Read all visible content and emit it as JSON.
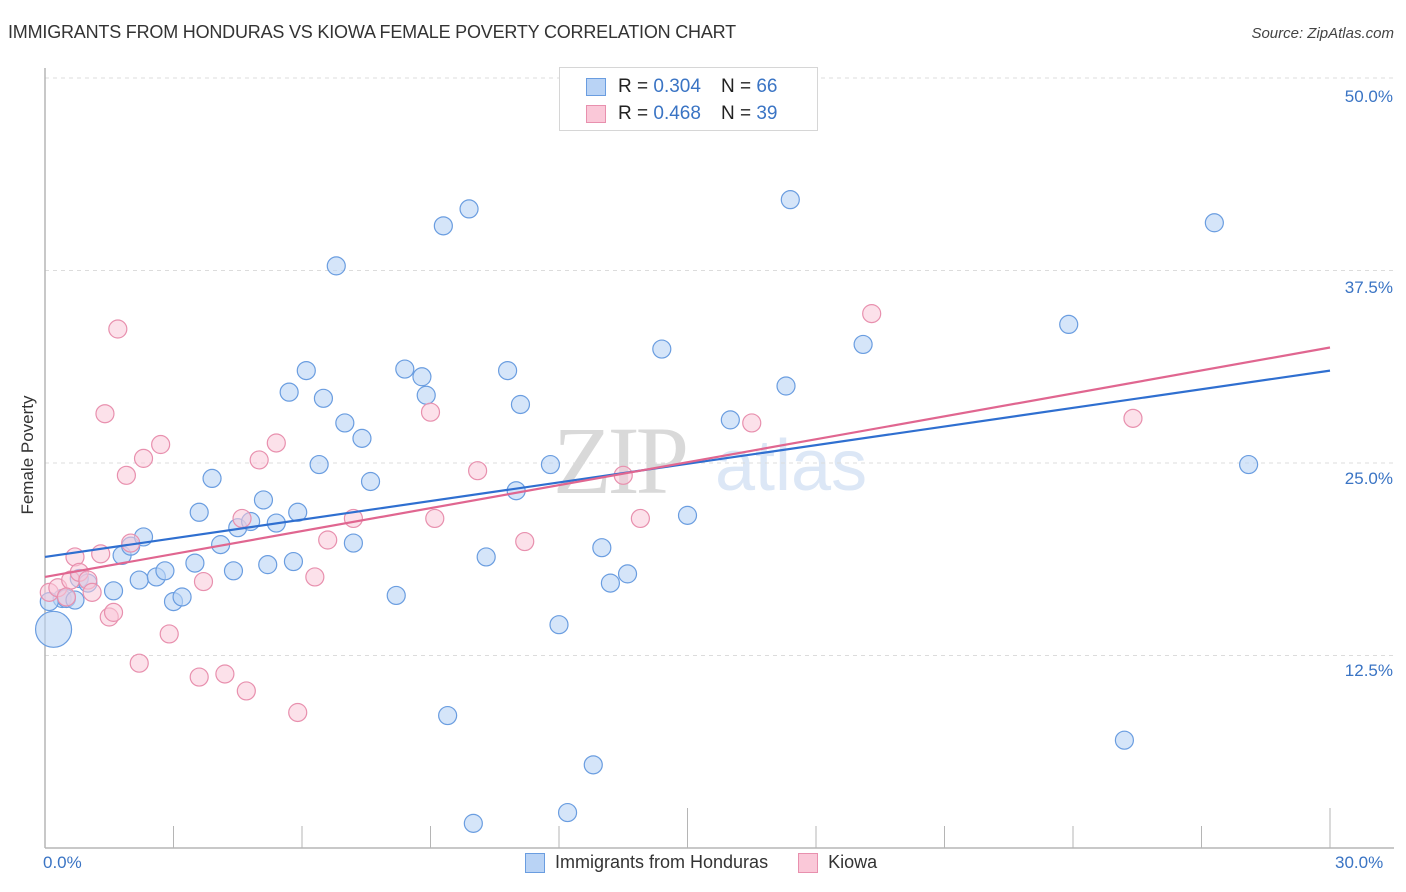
{
  "header": {
    "title": "IMMIGRANTS FROM HONDURAS VS KIOWA FEMALE POVERTY CORRELATION CHART",
    "source": "Source: ZipAtlas.com"
  },
  "legend": {
    "rows": [
      {
        "r_label": "R =",
        "r_value": "0.304",
        "n_label": "N =",
        "n_value": "66",
        "color_fill": "#b9d3f5",
        "color_stroke": "#6a9de0"
      },
      {
        "r_label": "R =",
        "r_value": "0.468",
        "n_label": "N =",
        "n_value": "39",
        "color_fill": "#fac8d8",
        "color_stroke": "#e890ae"
      }
    ]
  },
  "axes": {
    "y_title": "Female Poverty",
    "y_ticks": [
      "50.0%",
      "37.5%",
      "25.0%",
      "12.5%"
    ],
    "x_min_label": "0.0%",
    "x_max_label": "30.0%"
  },
  "bottom_legend": [
    {
      "label": "Immigrants from Honduras",
      "color": "#b9d3f5"
    },
    {
      "label": "Kiowa",
      "color": "#fac8d8"
    }
  ],
  "watermark": {
    "zip": "ZIP",
    "atlas": "atlas"
  },
  "chart_data": {
    "type": "scatter",
    "title": "IMMIGRANTS FROM HONDURAS VS KIOWA FEMALE POVERTY CORRELATION CHART",
    "xlabel": "",
    "ylabel": "Female Poverty",
    "xlim": [
      0,
      30
    ],
    "ylim": [
      0,
      50
    ],
    "y_ticks": [
      12.5,
      25.0,
      37.5,
      50.0
    ],
    "x_tick_labels": [
      "0.0%",
      "30.0%"
    ],
    "grid": "horizontal dashed",
    "legend_position": "top-center",
    "series": [
      {
        "name": "Immigrants from Honduras",
        "color": "#3a74c4",
        "R": 0.304,
        "N": 66,
        "trend": {
          "x": [
            0,
            30
          ],
          "y": [
            18.9,
            31.0
          ]
        },
        "points": [
          [
            0.2,
            14.2
          ],
          [
            0.4,
            16.2
          ],
          [
            0.5,
            16.2
          ],
          [
            0.8,
            17.5
          ],
          [
            0.7,
            16.1
          ],
          [
            1.0,
            17.2
          ],
          [
            1.6,
            16.7
          ],
          [
            1.8,
            19.0
          ],
          [
            2.0,
            19.6
          ],
          [
            2.3,
            20.2
          ],
          [
            2.2,
            17.4
          ],
          [
            2.6,
            17.6
          ],
          [
            2.8,
            18.0
          ],
          [
            3.0,
            16.0
          ],
          [
            3.2,
            16.3
          ],
          [
            3.5,
            18.5
          ],
          [
            3.6,
            21.8
          ],
          [
            3.9,
            24.0
          ],
          [
            4.1,
            19.7
          ],
          [
            4.4,
            18.0
          ],
          [
            4.5,
            20.8
          ],
          [
            4.8,
            21.2
          ],
          [
            5.1,
            22.6
          ],
          [
            5.2,
            18.4
          ],
          [
            5.4,
            21.1
          ],
          [
            5.7,
            29.6
          ],
          [
            5.8,
            18.6
          ],
          [
            5.9,
            21.8
          ],
          [
            6.1,
            31.0
          ],
          [
            6.4,
            24.9
          ],
          [
            6.5,
            29.2
          ],
          [
            6.8,
            37.8
          ],
          [
            7.0,
            27.6
          ],
          [
            7.2,
            19.8
          ],
          [
            7.4,
            26.6
          ],
          [
            7.6,
            23.8
          ],
          [
            8.2,
            16.4
          ],
          [
            8.4,
            31.1
          ],
          [
            8.8,
            30.6
          ],
          [
            8.9,
            29.4
          ],
          [
            9.3,
            40.4
          ],
          [
            9.4,
            8.6
          ],
          [
            9.9,
            41.5
          ],
          [
            10.0,
            1.6
          ],
          [
            10.3,
            18.9
          ],
          [
            10.8,
            31.0
          ],
          [
            11.0,
            23.2
          ],
          [
            11.1,
            28.8
          ],
          [
            11.8,
            24.9
          ],
          [
            12.0,
            14.5
          ],
          [
            12.2,
            2.3
          ],
          [
            12.8,
            5.4
          ],
          [
            13.0,
            19.5
          ],
          [
            13.2,
            17.2
          ],
          [
            13.6,
            17.8
          ],
          [
            14.4,
            32.4
          ],
          [
            15.0,
            21.6
          ],
          [
            16.0,
            27.8
          ],
          [
            17.3,
            30.0
          ],
          [
            17.4,
            42.1
          ],
          [
            19.1,
            32.7
          ],
          [
            23.9,
            34.0
          ],
          [
            25.2,
            7.0
          ],
          [
            27.3,
            40.6
          ],
          [
            28.1,
            24.9
          ],
          [
            0.1,
            16.0
          ]
        ]
      },
      {
        "name": "Kiowa",
        "color": "#e0628c",
        "R": 0.468,
        "N": 39,
        "trend": {
          "x": [
            0,
            30
          ],
          "y": [
            17.6,
            32.5
          ]
        },
        "points": [
          [
            0.1,
            16.6
          ],
          [
            0.3,
            16.9
          ],
          [
            0.6,
            17.4
          ],
          [
            0.7,
            18.9
          ],
          [
            0.8,
            17.9
          ],
          [
            1.0,
            17.4
          ],
          [
            1.1,
            16.6
          ],
          [
            1.3,
            19.1
          ],
          [
            1.4,
            28.2
          ],
          [
            1.5,
            15.0
          ],
          [
            1.6,
            15.3
          ],
          [
            1.7,
            33.7
          ],
          [
            1.9,
            24.2
          ],
          [
            2.0,
            19.8
          ],
          [
            2.2,
            12.0
          ],
          [
            2.3,
            25.3
          ],
          [
            2.7,
            26.2
          ],
          [
            2.9,
            13.9
          ],
          [
            3.6,
            11.1
          ],
          [
            3.7,
            17.3
          ],
          [
            4.2,
            11.3
          ],
          [
            4.6,
            21.4
          ],
          [
            4.7,
            10.2
          ],
          [
            5.0,
            25.2
          ],
          [
            5.4,
            26.3
          ],
          [
            5.9,
            8.8
          ],
          [
            6.3,
            17.6
          ],
          [
            6.6,
            20.0
          ],
          [
            7.2,
            21.4
          ],
          [
            9.0,
            28.3
          ],
          [
            9.1,
            21.4
          ],
          [
            10.1,
            24.5
          ],
          [
            11.2,
            19.9
          ],
          [
            13.5,
            24.2
          ],
          [
            13.9,
            21.4
          ],
          [
            16.5,
            27.6
          ],
          [
            19.3,
            34.7
          ],
          [
            25.4,
            27.9
          ],
          [
            0.5,
            16.3
          ]
        ]
      }
    ]
  }
}
